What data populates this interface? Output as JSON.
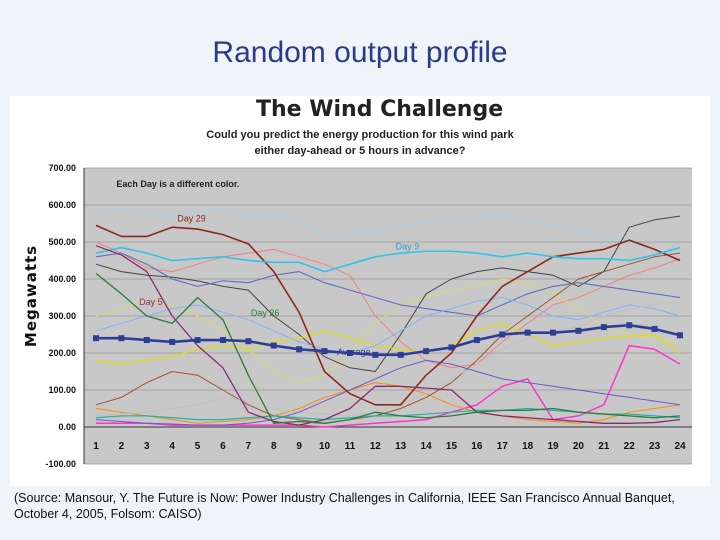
{
  "slide": {
    "title": "Random output profile",
    "source": "(Source: Mansour, Y. The Future is Now: Power Industry Challenges in California, IEEE San Francisco Annual Banquet, October 4, 2005, Folsom: CAISO)"
  },
  "chart_data": {
    "type": "line",
    "title": "The Wind Challenge",
    "subtitle": [
      "Could you predict the energy production for this wind park",
      "either day-ahead or 5 hours in advance?"
    ],
    "note": "Each Day is a different color.",
    "xlabel": "",
    "ylabel": "Megawatts",
    "x": [
      1,
      2,
      3,
      4,
      5,
      6,
      7,
      8,
      9,
      10,
      11,
      12,
      13,
      14,
      15,
      16,
      17,
      18,
      19,
      20,
      21,
      22,
      23,
      24
    ],
    "yticks": [
      "-100.00",
      "0.00",
      "100.00",
      "200.00",
      "300.00",
      "400.00",
      "500.00",
      "600.00",
      "700.00"
    ],
    "ylim": [
      -100,
      700
    ],
    "grid": true,
    "series": [
      {
        "name": "Day 29",
        "color": "#8b2a1a",
        "width": 1.6,
        "values": [
          545,
          515,
          515,
          540,
          535,
          520,
          495,
          420,
          310,
          150,
          90,
          60,
          60,
          140,
          200,
          300,
          380,
          420,
          460,
          470,
          480,
          505,
          480,
          450
        ]
      },
      {
        "name": "Day 9",
        "color": "#33c2e8",
        "width": 1.6,
        "values": [
          470,
          485,
          470,
          450,
          455,
          460,
          450,
          445,
          445,
          420,
          440,
          460,
          470,
          475,
          475,
          470,
          460,
          470,
          460,
          455,
          455,
          450,
          465,
          485
        ]
      },
      {
        "name": "Day 5",
        "color": "#8a2a6e",
        "width": 1.3,
        "values": [
          490,
          465,
          420,
          300,
          220,
          160,
          40,
          15,
          5,
          20,
          50,
          110,
          110,
          105,
          100,
          40,
          30,
          25,
          20,
          15,
          10,
          10,
          12,
          20
        ]
      },
      {
        "name": "Day 26",
        "color": "#2e7a3c",
        "width": 1.3,
        "values": [
          415,
          360,
          300,
          280,
          350,
          290,
          140,
          10,
          15,
          10,
          20,
          40,
          30,
          25,
          30,
          40,
          45,
          45,
          50,
          40,
          35,
          30,
          25,
          30
        ]
      },
      {
        "name": "Average",
        "color": "#2d3e96",
        "width": 2.6,
        "values": [
          240,
          240,
          235,
          230,
          235,
          235,
          232,
          220,
          210,
          205,
          200,
          195,
          195,
          205,
          215,
          235,
          250,
          255,
          255,
          260,
          270,
          275,
          265,
          248
        ]
      },
      {
        "name": "",
        "color": "#9fd3ef",
        "width": 1.0,
        "values": [
          580,
          590,
          580,
          570,
          580,
          590,
          575,
          570,
          560,
          520,
          520,
          530,
          545,
          555,
          560,
          565,
          570,
          560,
          545,
          530,
          515,
          500,
          480,
          470
        ]
      },
      {
        "name": "",
        "color": "#f08080",
        "width": 1.0,
        "values": [
          500,
          470,
          430,
          420,
          440,
          460,
          470,
          480,
          460,
          440,
          410,
          300,
          230,
          180,
          160,
          170,
          230,
          280,
          330,
          350,
          380,
          410,
          430,
          455
        ]
      },
      {
        "name": "",
        "color": "#d9d96a",
        "width": 1.0,
        "values": [
          300,
          320,
          340,
          330,
          300,
          260,
          210,
          150,
          120,
          140,
          200,
          280,
          330,
          350,
          370,
          380,
          400,
          390,
          360,
          320,
          270,
          250,
          240,
          230
        ]
      },
      {
        "name": "",
        "color": "#444444",
        "width": 1.0,
        "values": [
          440,
          420,
          410,
          405,
          395,
          380,
          370,
          300,
          250,
          190,
          160,
          150,
          250,
          360,
          400,
          420,
          430,
          420,
          410,
          380,
          420,
          540,
          560,
          570
        ]
      },
      {
        "name": "",
        "color": "#5b6ec4",
        "width": 1.1,
        "values": [
          460,
          470,
          440,
          400,
          380,
          395,
          390,
          410,
          420,
          390,
          370,
          350,
          330,
          320,
          310,
          300,
          330,
          360,
          380,
          390,
          380,
          370,
          360,
          350
        ]
      },
      {
        "name": "",
        "color": "#ff33cc",
        "width": 1.5,
        "values": [
          10,
          10,
          10,
          5,
          5,
          5,
          5,
          5,
          5,
          0,
          5,
          10,
          15,
          20,
          40,
          60,
          110,
          130,
          20,
          30,
          60,
          220,
          210,
          170
        ]
      },
      {
        "name": "",
        "color": "#e0e000",
        "width": 1.2,
        "values": [
          180,
          170,
          180,
          190,
          210,
          220,
          210,
          230,
          240,
          260,
          240,
          220,
          210,
          200,
          220,
          260,
          280,
          250,
          220,
          230,
          240,
          245,
          250,
          200
        ]
      },
      {
        "name": "",
        "color": "#7fb2ff",
        "width": 1.0,
        "values": [
          260,
          280,
          300,
          320,
          330,
          310,
          290,
          260,
          230,
          210,
          200,
          220,
          260,
          300,
          320,
          340,
          350,
          330,
          300,
          290,
          310,
          330,
          320,
          300
        ]
      },
      {
        "name": "",
        "color": "#ff8c00",
        "width": 1.0,
        "values": [
          50,
          40,
          30,
          20,
          10,
          15,
          20,
          30,
          50,
          80,
          100,
          120,
          110,
          90,
          60,
          40,
          30,
          20,
          15,
          10,
          20,
          40,
          50,
          60
        ]
      },
      {
        "name": "",
        "color": "#a0522d",
        "width": 1.0,
        "values": [
          60,
          80,
          120,
          150,
          140,
          100,
          60,
          30,
          20,
          10,
          20,
          30,
          50,
          80,
          120,
          180,
          250,
          300,
          350,
          400,
          420,
          440,
          460,
          470
        ]
      },
      {
        "name": "",
        "color": "#c0c0c0",
        "width": 1.0,
        "values": [
          30,
          35,
          40,
          50,
          60,
          80,
          70,
          50,
          40,
          35,
          30,
          40,
          60,
          90,
          130,
          170,
          210,
          240,
          260,
          270,
          300,
          320,
          330,
          340
        ]
      },
      {
        "name": "",
        "color": "#6a5acd",
        "width": 1.0,
        "values": [
          20,
          15,
          10,
          8,
          5,
          5,
          10,
          20,
          40,
          70,
          100,
          130,
          160,
          180,
          170,
          150,
          130,
          120,
          110,
          100,
          90,
          80,
          70,
          60
        ]
      },
      {
        "name": "",
        "color": "#20b2aa",
        "width": 1.2,
        "values": [
          25,
          30,
          30,
          25,
          20,
          20,
          25,
          30,
          25,
          20,
          25,
          30,
          30,
          35,
          40,
          45,
          45,
          50,
          45,
          40,
          35,
          35,
          30,
          25
        ]
      }
    ],
    "annotations": [
      {
        "text": "Each Day is a different color.",
        "x": 1.8,
        "y": 648,
        "color": "#222222"
      },
      {
        "text": "Day 29",
        "x": 4.2,
        "y": 555,
        "color": "#8b2a1a"
      },
      {
        "text": "Day 9",
        "x": 12.8,
        "y": 480,
        "color": "#33a0d0"
      },
      {
        "text": "Day 5",
        "x": 2.7,
        "y": 330,
        "color": "#8a2a6e"
      },
      {
        "text": "Day 26",
        "x": 7.1,
        "y": 300,
        "color": "#2e7a3c"
      },
      {
        "text": "Average",
        "x": 10.5,
        "y": 195,
        "color": "#2d3e96"
      }
    ]
  }
}
